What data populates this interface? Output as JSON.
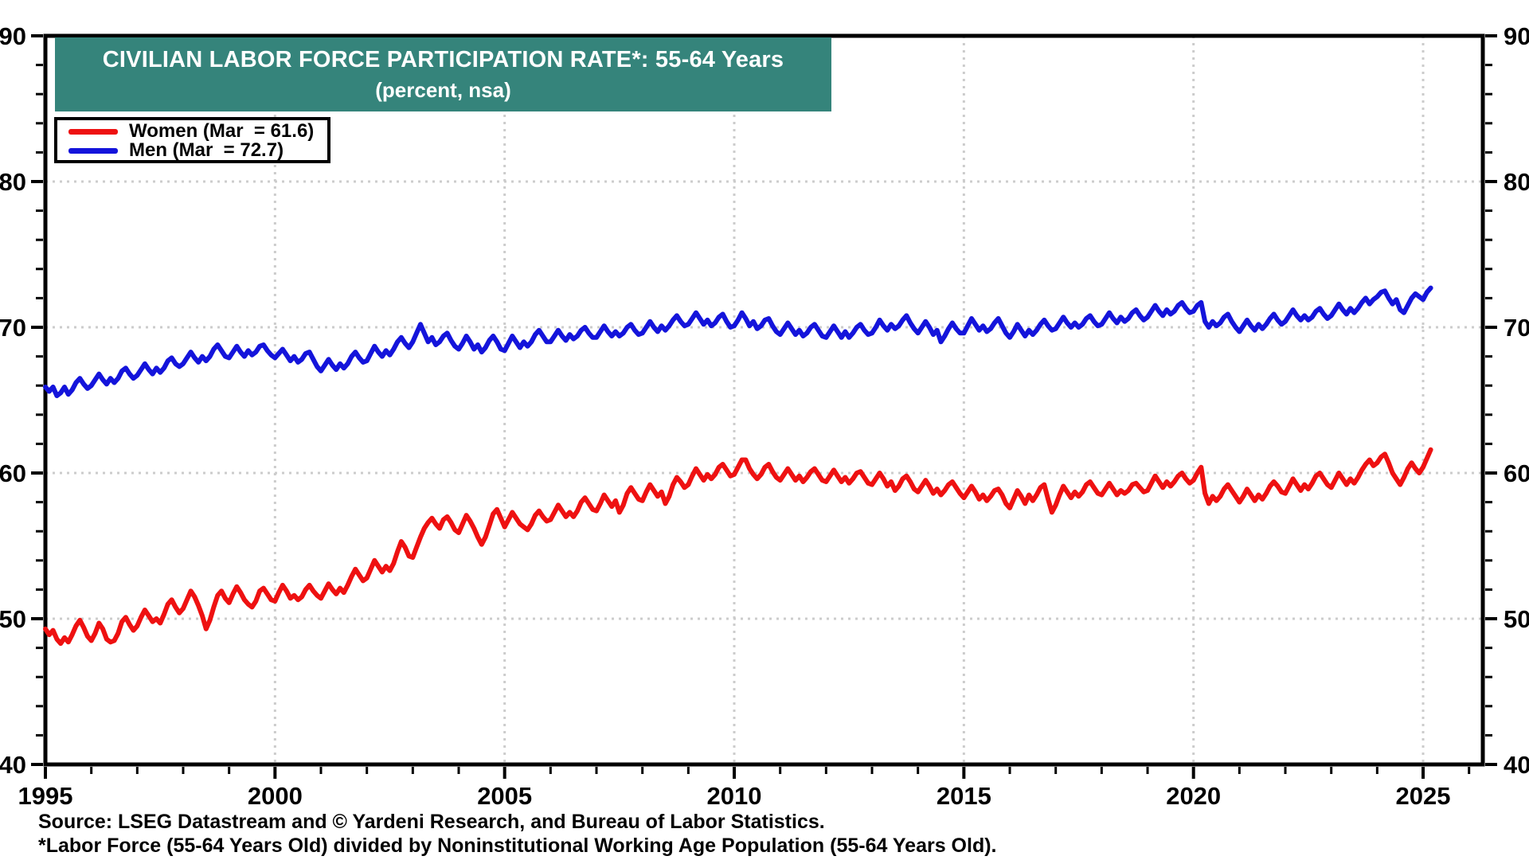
{
  "header": {
    "title_line1": "CIVILIAN LABOR FORCE PARTICIPATION RATE*: 55-64 Years",
    "title_line2": "(percent, nsa)",
    "background": "#35847B"
  },
  "legend": {
    "items": [
      {
        "label": "Women (Mar  = 61.6)",
        "color": "#EE1111"
      },
      {
        "label": "Men (Mar  = 72.7)",
        "color": "#1414DB"
      }
    ]
  },
  "source": {
    "line1": "Source: LSEG Datastream and © Yardeni Research, and Bureau of Labor Statistics.",
    "line2": "*Labor Force (55-64 Years Old) divided by Noninstitutional Working Age Population (55-64 Years Old)."
  },
  "chart_data": {
    "type": "line",
    "title": "CIVILIAN LABOR FORCE PARTICIPATION RATE*: 55-64 Years",
    "subtitle": "(percent, nsa)",
    "frequency": "monthly",
    "x_start": 1995.0,
    "x_step_months": 1,
    "xlim": [
      1995,
      2026.3
    ],
    "ylim": [
      40,
      90
    ],
    "y_ticks": [
      40,
      50,
      60,
      70,
      80,
      90
    ],
    "x_ticks": [
      1995,
      2000,
      2005,
      2010,
      2015,
      2020,
      2025
    ],
    "y_gridlines": [
      50,
      60,
      70,
      80
    ],
    "x_gridlines": [
      2000,
      2005,
      2010,
      2015,
      2020,
      2025
    ],
    "y_minor_tick_step": 2,
    "x_minor_tick_step": 1,
    "grid_on": true,
    "legend_position": "top-left",
    "colors": {
      "grid": "#CCCCCC",
      "axis": "#000000",
      "women": "#EE1111",
      "men": "#1414DB"
    },
    "series": [
      {
        "name": "Women",
        "latest_label": "Mar = 61.6",
        "latest_value": 61.6,
        "color": "#EE1111",
        "values": [
          49.3,
          48.9,
          49.2,
          48.6,
          48.3,
          48.7,
          48.4,
          48.9,
          49.5,
          49.9,
          49.4,
          48.8,
          48.5,
          49.0,
          49.7,
          49.3,
          48.6,
          48.4,
          48.5,
          49.0,
          49.8,
          50.1,
          49.6,
          49.2,
          49.5,
          50.1,
          50.6,
          50.2,
          49.8,
          50.0,
          49.7,
          50.3,
          51.0,
          51.3,
          50.8,
          50.4,
          50.7,
          51.3,
          51.9,
          51.5,
          50.9,
          50.2,
          49.3,
          49.9,
          50.8,
          51.6,
          51.9,
          51.4,
          51.1,
          51.7,
          52.2,
          51.8,
          51.3,
          51.0,
          50.8,
          51.2,
          51.9,
          52.1,
          51.7,
          51.3,
          51.2,
          51.8,
          52.3,
          51.9,
          51.4,
          51.6,
          51.3,
          51.5,
          52.0,
          52.3,
          51.9,
          51.6,
          51.4,
          51.9,
          52.4,
          52.0,
          51.7,
          52.1,
          51.8,
          52.3,
          52.9,
          53.4,
          53.0,
          52.6,
          52.8,
          53.4,
          54.0,
          53.6,
          53.2,
          53.6,
          53.3,
          53.8,
          54.6,
          55.3,
          54.9,
          54.3,
          54.2,
          54.9,
          55.6,
          56.2,
          56.6,
          56.9,
          56.5,
          56.2,
          56.8,
          57.0,
          56.6,
          56.1,
          55.9,
          56.5,
          57.1,
          56.7,
          56.2,
          55.6,
          55.1,
          55.6,
          56.4,
          57.2,
          57.5,
          56.9,
          56.3,
          56.8,
          57.3,
          56.9,
          56.5,
          56.3,
          56.1,
          56.5,
          57.1,
          57.4,
          57.0,
          56.7,
          56.8,
          57.3,
          57.8,
          57.4,
          57.0,
          57.3,
          57.0,
          57.4,
          58.0,
          58.3,
          57.9,
          57.5,
          57.4,
          57.9,
          58.5,
          58.1,
          57.7,
          58.1,
          57.3,
          57.8,
          58.6,
          59.0,
          58.6,
          58.2,
          58.1,
          58.7,
          59.2,
          58.8,
          58.4,
          58.7,
          57.9,
          58.4,
          59.2,
          59.7,
          59.4,
          59.0,
          59.2,
          59.8,
          60.3,
          59.9,
          59.5,
          59.9,
          59.6,
          59.9,
          60.4,
          60.6,
          60.2,
          59.8,
          59.9,
          60.4,
          60.9,
          60.9,
          60.3,
          59.9,
          59.6,
          59.9,
          60.4,
          60.6,
          60.1,
          59.7,
          59.5,
          59.9,
          60.3,
          59.9,
          59.5,
          59.8,
          59.4,
          59.7,
          60.1,
          60.3,
          59.9,
          59.5,
          59.4,
          59.8,
          60.2,
          59.8,
          59.4,
          59.7,
          59.3,
          59.6,
          60.0,
          60.1,
          59.7,
          59.3,
          59.2,
          59.6,
          60.0,
          59.6,
          59.1,
          59.4,
          58.8,
          59.1,
          59.6,
          59.8,
          59.4,
          58.9,
          58.7,
          59.1,
          59.5,
          59.1,
          58.6,
          58.9,
          58.5,
          58.8,
          59.2,
          59.4,
          59.0,
          58.6,
          58.3,
          58.7,
          59.1,
          58.7,
          58.2,
          58.5,
          58.1,
          58.4,
          58.8,
          58.9,
          58.5,
          57.9,
          57.6,
          58.2,
          58.8,
          58.4,
          57.9,
          58.5,
          58.1,
          58.5,
          59.0,
          59.2,
          58.2,
          57.3,
          57.8,
          58.5,
          59.1,
          58.7,
          58.3,
          58.7,
          58.4,
          58.7,
          59.2,
          59.4,
          59.0,
          58.6,
          58.5,
          58.9,
          59.3,
          58.9,
          58.5,
          58.8,
          58.6,
          58.8,
          59.2,
          59.3,
          59.0,
          58.7,
          58.8,
          59.3,
          59.8,
          59.4,
          59.0,
          59.4,
          59.1,
          59.4,
          59.8,
          60.0,
          59.6,
          59.3,
          59.5,
          60.0,
          60.4,
          58.6,
          57.9,
          58.4,
          58.1,
          58.4,
          58.9,
          59.2,
          58.8,
          58.4,
          58.0,
          58.4,
          58.9,
          58.5,
          58.1,
          58.5,
          58.2,
          58.6,
          59.1,
          59.4,
          59.1,
          58.7,
          58.6,
          59.1,
          59.6,
          59.2,
          58.8,
          59.2,
          58.9,
          59.3,
          59.8,
          60.0,
          59.6,
          59.2,
          59.0,
          59.5,
          60.0,
          59.6,
          59.2,
          59.6,
          59.3,
          59.7,
          60.2,
          60.6,
          60.9,
          60.5,
          60.7,
          61.1,
          61.3,
          60.7,
          60.0,
          59.6,
          59.2,
          59.7,
          60.3,
          60.7,
          60.3,
          60.0,
          60.4,
          61.0,
          61.6
        ]
      },
      {
        "name": "Men",
        "latest_label": "Mar = 72.7",
        "latest_value": 72.7,
        "color": "#1414DB",
        "values": [
          65.9,
          65.6,
          65.9,
          65.3,
          65.5,
          65.9,
          65.4,
          65.7,
          66.2,
          66.5,
          66.1,
          65.8,
          66.0,
          66.4,
          66.8,
          66.4,
          66.1,
          66.5,
          66.2,
          66.5,
          67.0,
          67.2,
          66.8,
          66.5,
          66.7,
          67.1,
          67.5,
          67.1,
          66.8,
          67.2,
          66.9,
          67.2,
          67.7,
          67.9,
          67.5,
          67.3,
          67.5,
          67.9,
          68.3,
          67.9,
          67.6,
          68.0,
          67.7,
          68.0,
          68.5,
          68.8,
          68.4,
          68.0,
          67.9,
          68.3,
          68.7,
          68.3,
          68.0,
          68.4,
          68.1,
          68.3,
          68.7,
          68.8,
          68.4,
          68.1,
          67.9,
          68.2,
          68.5,
          68.1,
          67.7,
          68.0,
          67.6,
          67.8,
          68.2,
          68.3,
          67.8,
          67.3,
          67.0,
          67.4,
          67.8,
          67.4,
          67.1,
          67.5,
          67.2,
          67.5,
          68.0,
          68.3,
          67.9,
          67.6,
          67.7,
          68.2,
          68.7,
          68.3,
          68.0,
          68.4,
          68.1,
          68.5,
          69.0,
          69.3,
          68.9,
          68.6,
          69.0,
          69.6,
          70.2,
          69.6,
          69.0,
          69.3,
          68.8,
          69.0,
          69.4,
          69.6,
          69.1,
          68.7,
          68.5,
          68.9,
          69.4,
          69.0,
          68.5,
          68.8,
          68.3,
          68.6,
          69.1,
          69.4,
          69.0,
          68.5,
          68.4,
          68.9,
          69.4,
          69.0,
          68.6,
          69.0,
          68.7,
          69.0,
          69.5,
          69.8,
          69.4,
          69.0,
          69.0,
          69.4,
          69.8,
          69.4,
          69.1,
          69.5,
          69.2,
          69.4,
          69.8,
          70.0,
          69.6,
          69.3,
          69.3,
          69.7,
          70.1,
          69.7,
          69.4,
          69.7,
          69.4,
          69.6,
          70.0,
          70.2,
          69.8,
          69.5,
          69.6,
          70.0,
          70.4,
          70.0,
          69.7,
          70.1,
          69.8,
          70.1,
          70.5,
          70.8,
          70.4,
          70.1,
          70.2,
          70.6,
          71.0,
          70.6,
          70.2,
          70.5,
          70.1,
          70.3,
          70.7,
          70.9,
          70.4,
          70.0,
          70.1,
          70.5,
          71.0,
          70.6,
          70.1,
          70.4,
          69.9,
          70.1,
          70.5,
          70.6,
          70.1,
          69.7,
          69.5,
          69.9,
          70.3,
          69.9,
          69.5,
          69.8,
          69.4,
          69.6,
          70.0,
          70.2,
          69.8,
          69.4,
          69.3,
          69.7,
          70.1,
          69.7,
          69.3,
          69.7,
          69.3,
          69.6,
          70.0,
          70.2,
          69.8,
          69.5,
          69.6,
          70.0,
          70.5,
          70.1,
          69.8,
          70.2,
          69.9,
          70.1,
          70.5,
          70.8,
          70.3,
          69.9,
          69.6,
          70.0,
          70.4,
          70.0,
          69.5,
          69.8,
          69.0,
          69.4,
          69.9,
          70.3,
          69.9,
          69.6,
          69.6,
          70.1,
          70.6,
          70.2,
          69.8,
          70.1,
          69.7,
          69.9,
          70.3,
          70.6,
          70.1,
          69.6,
          69.3,
          69.7,
          70.2,
          69.8,
          69.4,
          69.8,
          69.5,
          69.8,
          70.2,
          70.5,
          70.1,
          69.8,
          69.9,
          70.3,
          70.7,
          70.3,
          70.0,
          70.3,
          70.0,
          70.2,
          70.6,
          70.8,
          70.4,
          70.1,
          70.2,
          70.6,
          71.0,
          70.6,
          70.3,
          70.7,
          70.4,
          70.6,
          71.0,
          71.2,
          70.8,
          70.5,
          70.7,
          71.1,
          71.5,
          71.1,
          70.8,
          71.2,
          70.9,
          71.1,
          71.5,
          71.7,
          71.3,
          71.0,
          71.1,
          71.5,
          71.7,
          70.4,
          70.0,
          70.4,
          70.1,
          70.3,
          70.7,
          70.9,
          70.4,
          70.0,
          69.7,
          70.1,
          70.5,
          70.1,
          69.8,
          70.2,
          69.9,
          70.2,
          70.6,
          70.9,
          70.5,
          70.2,
          70.4,
          70.8,
          71.2,
          70.8,
          70.5,
          70.8,
          70.5,
          70.7,
          71.1,
          71.3,
          70.9,
          70.6,
          70.8,
          71.2,
          71.6,
          71.2,
          70.9,
          71.3,
          71.0,
          71.3,
          71.7,
          72.0,
          71.6,
          71.9,
          72.1,
          72.4,
          72.5,
          72.0,
          71.6,
          71.9,
          71.2,
          71.0,
          71.5,
          72.0,
          72.3,
          72.1,
          71.9,
          72.4,
          72.7
        ]
      }
    ]
  }
}
